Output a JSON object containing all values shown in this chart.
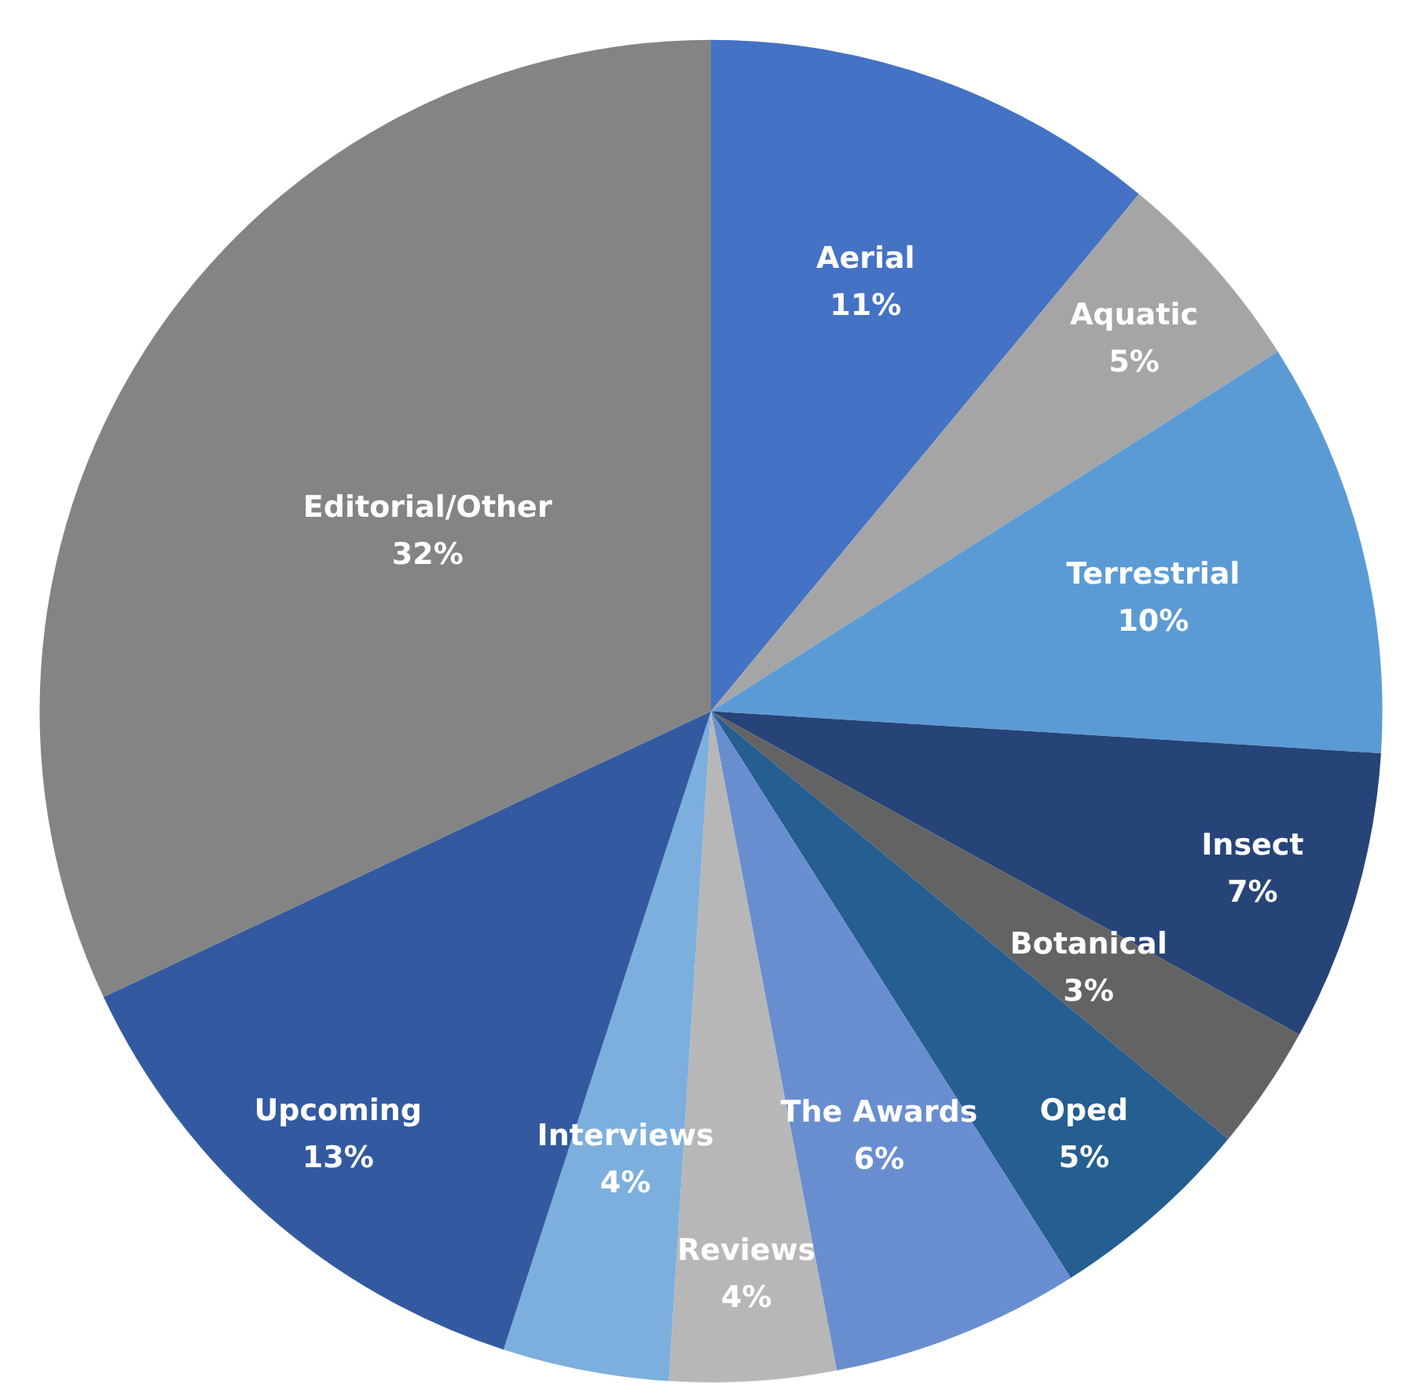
{
  "chart_data": {
    "type": "pie",
    "categories": [
      "Aerial",
      "Aquatic",
      "Terrestrial",
      "Insect",
      "Botanical",
      "Oped",
      "The Awards",
      "Reviews",
      "Interviews",
      "Upcoming",
      "Editorial/Other"
    ],
    "values": [
      11,
      5,
      10,
      7,
      3,
      5,
      6,
      4,
      4,
      13,
      32
    ],
    "colors": [
      "#4472c4",
      "#a5a5a5",
      "#5b9bd5",
      "#264478",
      "#636363",
      "#255e91",
      "#698ed0",
      "#b7b7b7",
      "#7cafdd",
      "#335aa1",
      "#848484"
    ],
    "value_labels": [
      "11%",
      "5%",
      "10%",
      "7%",
      "3%",
      "5%",
      "6%",
      "4%",
      "4%",
      "13%",
      "32%"
    ],
    "legend": false
  }
}
